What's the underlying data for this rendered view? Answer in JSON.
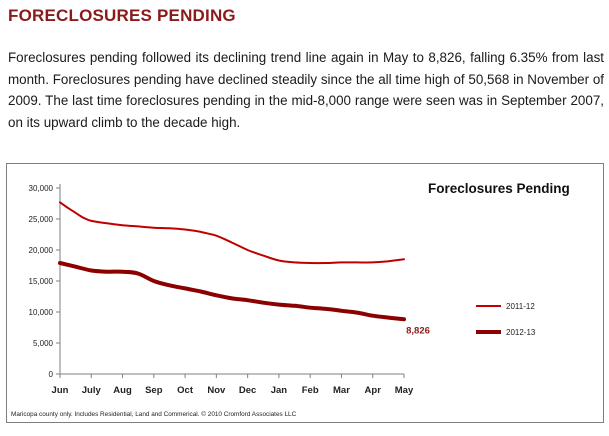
{
  "header": {
    "title": "FORECLOSURES PENDING"
  },
  "body_text": "Foreclosures pending followed its declining trend line again in May to 8,826, falling 6.35% from last month.  Foreclosures pending have declined steadily since the all time high of 50,568 in November of 2009.  The last time foreclosures pending in the mid-8,000 range were seen was in September 2007, on its upward climb to the decade high.",
  "chart_data": {
    "type": "line",
    "title": "Foreclosures Pending",
    "categories": [
      "Jun",
      "July",
      "Aug",
      "Sep",
      "Oct",
      "Nov",
      "Dec",
      "Jan",
      "Feb",
      "Mar",
      "Apr",
      "May"
    ],
    "y_ticks": [
      "0",
      "5,000",
      "10,000",
      "15,000",
      "20,000",
      "25,000",
      "30,000"
    ],
    "ylim": [
      0,
      30000
    ],
    "grid": false,
    "legend_position": "right",
    "series": [
      {
        "name": "2011-12",
        "color": "#c00000",
        "x": [
          0,
          0.25,
          0.5,
          0.75,
          1,
          1.5,
          2,
          2.5,
          3,
          3.5,
          4,
          4.3,
          4.6,
          5,
          5.5,
          6,
          6.5,
          7,
          7.5,
          8,
          8.5,
          9,
          9.5,
          10,
          10.5,
          11
        ],
        "values": [
          27700,
          26800,
          26000,
          25200,
          24700,
          24300,
          24000,
          23800,
          23600,
          23500,
          23300,
          23100,
          22800,
          22300,
          21200,
          20000,
          19100,
          18300,
          18000,
          17900,
          17900,
          18000,
          18000,
          18000,
          18200,
          18500
        ]
      },
      {
        "name": "2012-13",
        "color": "#8b0000",
        "x": [
          0,
          0.5,
          1,
          1.5,
          2,
          2.5,
          3,
          3.5,
          4,
          4.5,
          5,
          5.5,
          6,
          6.5,
          7,
          7.5,
          8,
          8.5,
          9,
          9.5,
          10,
          10.5,
          11
        ],
        "values": [
          17900,
          17300,
          16700,
          16500,
          16500,
          16200,
          15000,
          14300,
          13800,
          13300,
          12700,
          12200,
          11900,
          11500,
          11200,
          11000,
          10700,
          10500,
          10200,
          9900,
          9400,
          9100,
          8826
        ]
      }
    ],
    "annotations": [
      {
        "text": "8,826",
        "x": 11,
        "y": 8826
      }
    ],
    "footnote": "Maricopa county only. Includes Residential, Land and Commerical. © 2010 Cromford Associates LLC"
  }
}
